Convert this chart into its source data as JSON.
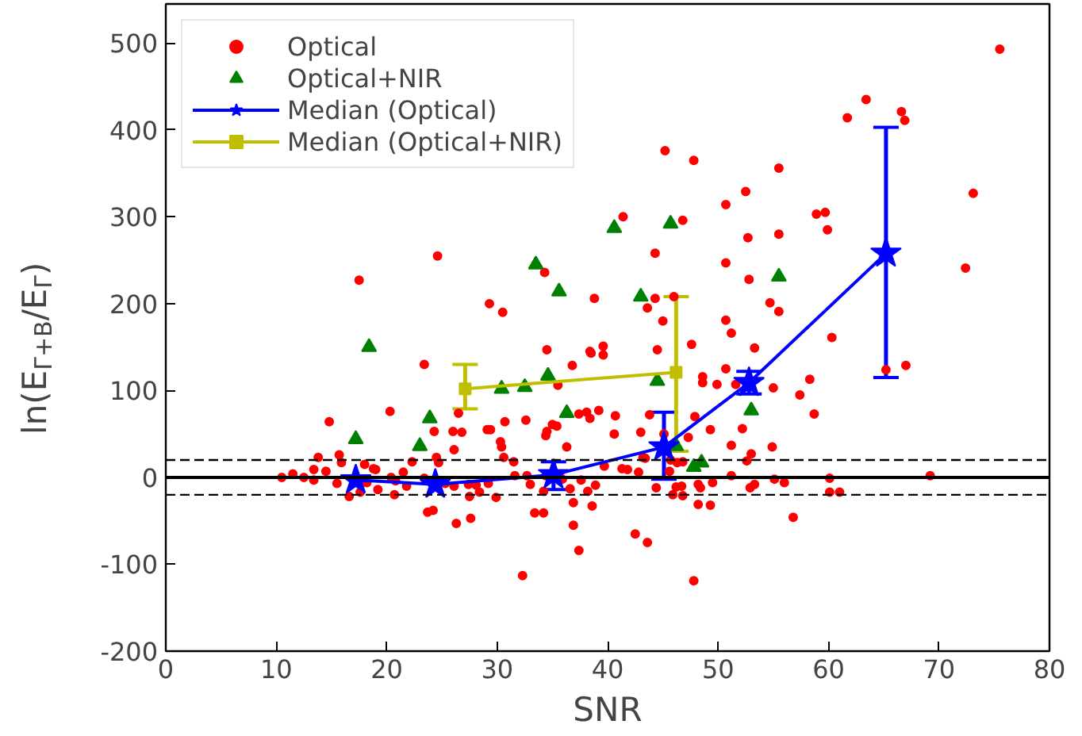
{
  "chart_data": {
    "type": "scatter",
    "xlabel": "SNR",
    "ylabel": "ln(E$_{Γ+B}$/E$_{Γ}$)",
    "xlim": [
      0,
      80
    ],
    "ylim": [
      -200,
      545
    ],
    "xticks": [
      0,
      10,
      20,
      30,
      40,
      50,
      60,
      70,
      80
    ],
    "yticks": [
      -200,
      -100,
      0,
      100,
      200,
      300,
      400,
      500
    ],
    "grid": false,
    "legend": "top left",
    "ref_lines": [
      {
        "axis": "y",
        "value": 0,
        "color": "#000000",
        "line_style": "solid"
      },
      {
        "axis": "y",
        "value": 20,
        "color": "#000000",
        "line_style": "dashed"
      },
      {
        "axis": "y",
        "value": -20,
        "color": "#000000",
        "line_style": "dashed"
      }
    ],
    "series": [
      {
        "name": "Optical",
        "color": "#ff0000",
        "marker": "circle",
        "x": [
          17.5,
          24.6,
          34.3,
          29.3,
          30.5,
          38.8,
          34.5,
          38.4,
          39.6,
          75.5,
          63.4,
          66.6,
          66.9,
          61.7,
          45.2,
          47.8,
          55.5,
          52.5,
          50.7,
          41.4,
          46.8,
          58.9,
          59.7,
          59.9,
          73.1,
          52.7,
          55.5,
          44.3,
          50.7,
          52.8,
          72.4,
          54.7,
          55.5,
          44.3,
          43.6,
          46.0,
          45.0,
          50.7,
          51.2,
          47.6,
          44.5,
          53.3,
          60.3,
          23.4,
          14.8,
          20.3,
          15.7,
          13.8,
          24.3,
          26.0,
          26.8,
          26.1,
          26.5,
          29.1,
          29.4,
          30.7,
          32.6,
          30.3,
          30.4,
          30.6,
          34.4,
          34.5,
          35.0,
          35.4,
          36.3,
          37.4,
          38.1,
          39.2,
          38.4,
          39.6,
          36.8,
          35.5,
          38.5,
          10.5,
          11.5,
          12.5,
          13.4,
          13.4,
          14.5,
          15.9,
          15.5,
          16.6,
          17.6,
          18.0,
          18.2,
          18.8,
          19.0,
          19.2,
          20.4,
          20.7,
          20.8,
          21.5,
          21.8,
          22.3,
          23.4,
          23.7,
          24.2,
          24.5,
          24.7,
          25.3,
          26.1,
          26.3,
          27.4,
          27.5,
          27.6,
          28.1,
          28.4,
          29.2,
          29.9,
          31.5,
          31.6,
          32.3,
          32.7,
          33.0,
          33.4,
          34.2,
          34.2,
          34.4,
          35.9,
          36.6,
          36.9,
          36.9,
          37.4,
          37.6,
          38.2,
          38.6,
          38.9,
          39.7,
          40.7,
          40.6,
          43.8,
          43.0,
          45.1,
          41.3,
          41.8,
          42.8,
          43.2,
          43.4,
          44.4,
          45.6,
          45.7,
          45.9,
          46.2,
          46.7,
          46.8,
          46.3,
          47.3,
          47.9,
          46.8,
          48.2,
          48.4,
          48.2,
          49.3,
          49.5,
          49.3,
          48.6,
          48.6,
          49.9,
          50.7,
          51.6,
          51.2,
          51.2,
          52.2,
          52.6,
          53.0,
          52.9,
          53.3,
          55.0,
          54.9,
          55.1,
          56.0,
          56.8,
          57.4,
          58.3,
          58.7,
          60.1,
          60.1,
          61.0,
          67.0,
          65.2,
          69.2,
          42.5,
          43.6,
          47.8
        ],
        "values": [
          227,
          255,
          236,
          200,
          190,
          206,
          147,
          145,
          151,
          493,
          435,
          421,
          411,
          414,
          376,
          365,
          356,
          329,
          314,
          300,
          296,
          303,
          305,
          285,
          327,
          276,
          280,
          258,
          247,
          228,
          241,
          201,
          191,
          206,
          195,
          208,
          180,
          181,
          166,
          153,
          147,
          149,
          161,
          130,
          64,
          76,
          26,
          23,
          53,
          53,
          52,
          32,
          74,
          55,
          55,
          64,
          66,
          41,
          35,
          23,
          48,
          53,
          61,
          59,
          35,
          73,
          75,
          77,
          68,
          141,
          129,
          106,
          143,
          0,
          4,
          0,
          9,
          -3,
          7,
          17,
          -7,
          -22,
          -17,
          15,
          -6,
          10,
          9,
          -14,
          0,
          -20,
          -4,
          6,
          -10,
          18,
          -1,
          -40,
          -38,
          23,
          17,
          -7,
          -10,
          -53,
          -8,
          -22,
          -47,
          -9,
          -17,
          -7,
          -23,
          18,
          2,
          -113,
          2,
          -8,
          -41,
          -41,
          -16,
          2,
          -2,
          -13,
          -29,
          -55,
          -84,
          -3,
          -16,
          -33,
          -9,
          13,
          71,
          50,
          72,
          52,
          50,
          10,
          9,
          6,
          23,
          22,
          -12,
          7,
          20,
          -20,
          -11,
          -10,
          -21,
          17,
          46,
          70,
          18,
          -8,
          -12,
          -31,
          -32,
          -6,
          55,
          116,
          109,
          107,
          125,
          107,
          37,
          2,
          56,
          19,
          27,
          -12,
          -8,
          103,
          35,
          -2,
          -6,
          -46,
          95,
          113,
          73,
          -1,
          -17,
          -17,
          129,
          124,
          2,
          -65,
          -75,
          -119
        ]
      },
      {
        "name": "Optical+NIR",
        "color": "#008000",
        "marker": "triangle",
        "x": [
          17.2,
          18.4,
          23.0,
          23.9,
          30.4,
          32.5,
          33.5,
          34.6,
          35.6,
          36.3,
          40.6,
          43.0,
          44.5,
          45.7,
          46.2,
          47.8,
          48.5,
          53.0,
          55.5
        ],
        "values": [
          44,
          150,
          36,
          68,
          102,
          104,
          245,
          117,
          214,
          74,
          287,
          208,
          111,
          292,
          36,
          12,
          17,
          77,
          231
        ]
      },
      {
        "name": "Median (Optical)",
        "color": "#0000ff",
        "type": "line",
        "marker": "star",
        "x": [
          17.2,
          24.4,
          35.1,
          45.1,
          52.8,
          65.2
        ],
        "values": [
          -3,
          -8,
          3,
          35,
          109,
          258
        ],
        "errors": [
          null,
          null,
          [
            -14,
            18
          ],
          [
            -2,
            75
          ],
          [
            96,
            122
          ],
          [
            115,
            403
          ]
        ]
      },
      {
        "name": "Median (Optical+NIR)",
        "color": "#bfbf00",
        "type": "line",
        "marker": "square",
        "x": [
          27.1,
          46.2
        ],
        "values": [
          102,
          121
        ],
        "errors": [
          [
            79,
            130
          ],
          [
            30,
            208
          ]
        ]
      }
    ]
  }
}
